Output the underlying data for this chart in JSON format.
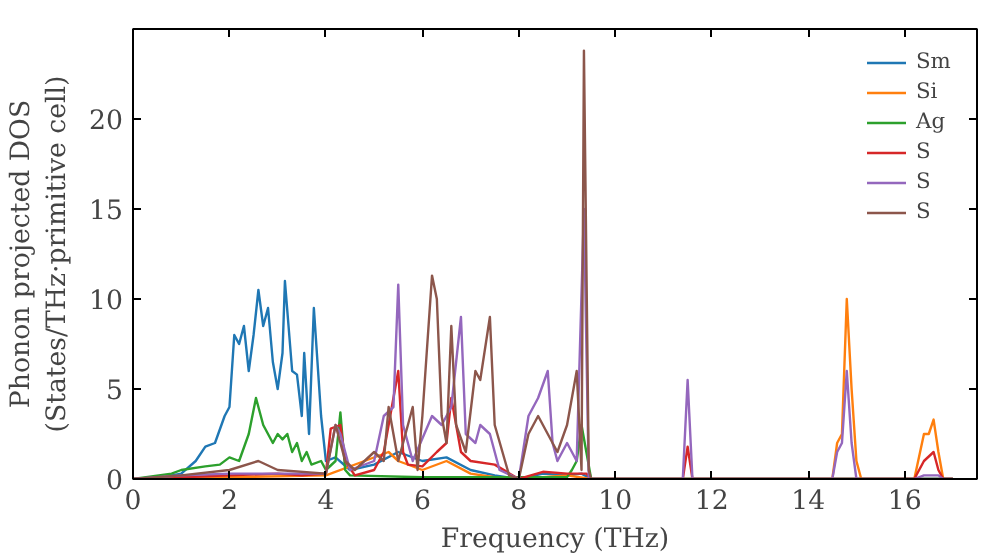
{
  "chart_data": {
    "type": "line",
    "xlabel": "Frequency (THz)",
    "ylabel": "Phonon projected DOS\n(States/THz·primitive cell)",
    "xlim": [
      0,
      17.5
    ],
    "ylim": [
      0,
      25
    ],
    "xticks": [
      0,
      2,
      4,
      6,
      8,
      10,
      12,
      14,
      16
    ],
    "yticks": [
      0,
      5,
      10,
      15,
      20
    ],
    "grid": false,
    "legend": "top right",
    "series": [
      {
        "name": "Sm",
        "color": "#1f77b4",
        "x": [
          0,
          0.5,
          1,
          1.3,
          1.5,
          1.7,
          1.9,
          2.0,
          2.1,
          2.2,
          2.3,
          2.4,
          2.5,
          2.6,
          2.7,
          2.8,
          2.9,
          3.0,
          3.1,
          3.15,
          3.3,
          3.4,
          3.5,
          3.55,
          3.65,
          3.75,
          3.9,
          4.0,
          4.2,
          4.5,
          5,
          5.5,
          6,
          6.5,
          7,
          7.5,
          8,
          8.5,
          9,
          9.3,
          9.5,
          17
        ],
        "values": [
          0,
          0.05,
          0.3,
          1,
          1.8,
          2,
          3.5,
          4,
          8,
          7.5,
          8.5,
          6,
          8,
          10.5,
          8.5,
          9.5,
          6.5,
          5,
          7,
          11,
          6,
          5.8,
          3.5,
          7,
          2.5,
          9.5,
          3.5,
          1,
          1.2,
          0.5,
          0.8,
          1.5,
          1,
          1.2,
          0.5,
          0.2,
          0,
          0.3,
          0.2,
          0.3,
          0,
          0
        ]
      },
      {
        "name": "Si",
        "color": "#ff7f0e",
        "x": [
          0,
          2,
          4,
          4.8,
          5.3,
          5.5,
          6,
          6.5,
          7,
          7.5,
          8,
          9,
          9.5,
          14.5,
          14.6,
          14.7,
          14.8,
          14.9,
          15,
          15.1,
          16.2,
          16.4,
          16.5,
          16.6,
          16.7,
          16.8,
          17
        ],
        "values": [
          0,
          0.1,
          0.2,
          1,
          1.5,
          1,
          0.5,
          1,
          0.3,
          0.1,
          0,
          0.2,
          0,
          0,
          2,
          2.5,
          10,
          5,
          1,
          0,
          0,
          2.5,
          2.5,
          3.3,
          1.5,
          0,
          0
        ]
      },
      {
        "name": "Ag",
        "color": "#2ca02c",
        "x": [
          0,
          0.8,
          1,
          1.5,
          1.8,
          2,
          2.2,
          2.4,
          2.55,
          2.7,
          2.9,
          3,
          3.1,
          3.2,
          3.3,
          3.4,
          3.5,
          3.6,
          3.7,
          3.9,
          4,
          4.2,
          4.3,
          4.4,
          4.5,
          6,
          8,
          9,
          9.1,
          9.2,
          9.3,
          9.4,
          9.5,
          17
        ],
        "values": [
          0,
          0.3,
          0.5,
          0.7,
          0.8,
          1.2,
          1,
          2.5,
          4.5,
          3,
          2,
          2.5,
          2.2,
          2.5,
          1.5,
          2,
          1,
          1.5,
          0.8,
          1,
          0.5,
          1,
          3.7,
          0.5,
          0.2,
          0.1,
          0.1,
          0.1,
          0.5,
          1,
          3,
          1.5,
          0,
          0
        ]
      },
      {
        "name": "S",
        "color": "#d62728",
        "x": [
          0,
          1,
          2,
          3,
          3.5,
          4,
          4.1,
          4.3,
          4.4,
          4.6,
          5,
          5.2,
          5.3,
          5.5,
          5.6,
          5.7,
          6,
          6.3,
          6.5,
          6.6,
          6.8,
          7,
          7.5,
          8,
          8.5,
          9,
          9.4,
          9.5,
          11.4,
          11.5,
          11.6,
          16.2,
          16.4,
          16.6,
          16.7,
          16.8,
          17
        ],
        "values": [
          0,
          0.1,
          0.2,
          0.3,
          0.2,
          0.3,
          2.8,
          3,
          1,
          0.2,
          0.5,
          1.5,
          3,
          6,
          1.5,
          0.8,
          0.7,
          1.5,
          2,
          4.5,
          1.5,
          1,
          0.8,
          0,
          0.4,
          0.3,
          0.3,
          0,
          0,
          1.8,
          0,
          0,
          1,
          1.5,
          0.5,
          0,
          0
        ]
      },
      {
        "name": "S",
        "color": "#9467bd",
        "x": [
          0,
          1,
          2,
          3,
          4,
          4.2,
          4.3,
          4.5,
          5,
          5.2,
          5.4,
          5.5,
          5.6,
          5.8,
          6.2,
          6.4,
          6.6,
          6.8,
          6.9,
          7.1,
          7.2,
          7.4,
          7.6,
          8,
          8.2,
          8.4,
          8.6,
          8.7,
          8.8,
          9,
          9.2,
          9.35,
          9.45,
          11.4,
          11.5,
          11.6,
          14.5,
          14.6,
          14.7,
          14.8,
          14.9,
          15,
          16.2,
          16.4,
          16.7,
          16.8,
          17
        ],
        "values": [
          0,
          0.2,
          0.3,
          0.3,
          0.3,
          3,
          2.5,
          0.5,
          1,
          3.5,
          4,
          10.8,
          3,
          1,
          3.5,
          3,
          4,
          9,
          2.5,
          2,
          3,
          2.5,
          0.5,
          0,
          3.5,
          4.5,
          6,
          2,
          1,
          2,
          1,
          15,
          0,
          0,
          5.5,
          0,
          0,
          1.5,
          2,
          6,
          2,
          0,
          0,
          0.2,
          0.2,
          0,
          0
        ]
      },
      {
        "name": "S",
        "color": "#8c564b",
        "x": [
          0,
          1,
          2,
          2.6,
          3,
          4,
          4.2,
          4.4,
          4.6,
          5,
          5.2,
          5.3,
          5.5,
          5.8,
          5.9,
          6,
          6.2,
          6.3,
          6.4,
          6.5,
          6.6,
          6.7,
          6.9,
          7.1,
          7.2,
          7.4,
          7.5,
          7.8,
          8,
          8.2,
          8.4,
          8.6,
          8.8,
          9,
          9.2,
          9.3,
          9.35,
          9.45,
          9.5,
          17
        ],
        "values": [
          0,
          0.2,
          0.5,
          1,
          0.5,
          0.3,
          3,
          1,
          0.5,
          1.5,
          1,
          4,
          1,
          4,
          0.5,
          3.5,
          11.3,
          10,
          3.5,
          2,
          8.5,
          3,
          1.5,
          6,
          5.5,
          9,
          3,
          0.2,
          0,
          2.5,
          3.5,
          2.5,
          1.5,
          3,
          6,
          0.5,
          23.8,
          0.5,
          0,
          0
        ]
      }
    ]
  }
}
